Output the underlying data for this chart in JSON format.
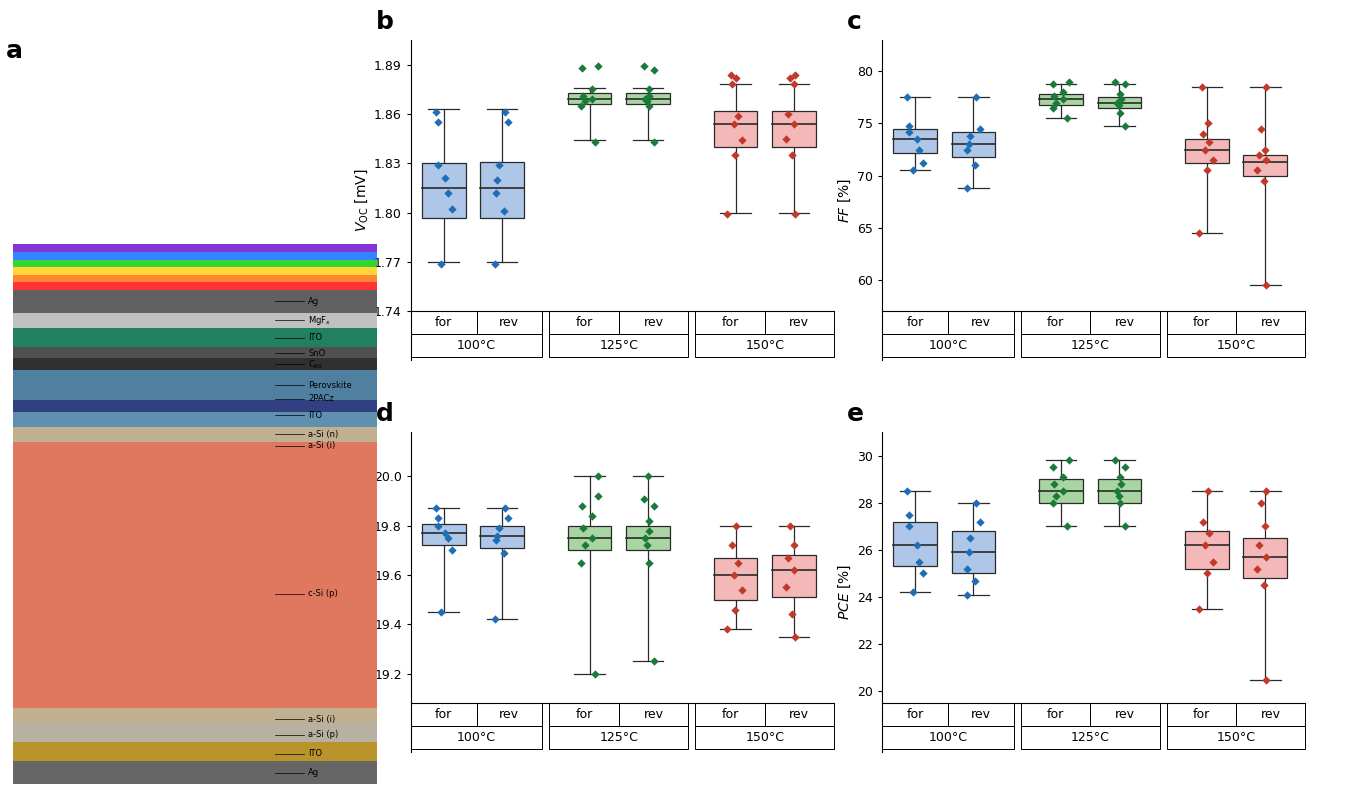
{
  "colors": {
    "100": {
      "face": "#aec6e8",
      "edge": "#2a2a2a",
      "scatter": "#1f6eb5"
    },
    "125": {
      "face": "#a8d5a2",
      "edge": "#2a2a2a",
      "scatter": "#1a7a3a"
    },
    "150": {
      "face": "#f4b8b8",
      "edge": "#2a2a2a",
      "scatter": "#c0392b"
    }
  },
  "panel_b": {
    "label": "b",
    "ylabel": "$V_{\\mathrm{OC}}$ [mV]",
    "ylim": [
      1.74,
      1.905
    ],
    "yticks": [
      1.74,
      1.77,
      1.8,
      1.83,
      1.86,
      1.89
    ],
    "boxes": {
      "100_for": {
        "q1": 1.797,
        "median": 1.815,
        "q3": 1.83,
        "whislo": 1.77,
        "whishi": 1.863,
        "points": [
          1.769,
          1.802,
          1.812,
          1.821,
          1.829,
          1.855,
          1.861
        ]
      },
      "100_rev": {
        "q1": 1.797,
        "median": 1.815,
        "q3": 1.831,
        "whislo": 1.77,
        "whishi": 1.863,
        "points": [
          1.769,
          1.801,
          1.812,
          1.82,
          1.829,
          1.855,
          1.861
        ]
      },
      "125_for": {
        "q1": 1.866,
        "median": 1.869,
        "q3": 1.873,
        "whislo": 1.844,
        "whishi": 1.876,
        "points": [
          1.843,
          1.865,
          1.868,
          1.869,
          1.871,
          1.875,
          1.888,
          1.889
        ]
      },
      "125_rev": {
        "q1": 1.866,
        "median": 1.869,
        "q3": 1.873,
        "whislo": 1.844,
        "whishi": 1.876,
        "points": [
          1.843,
          1.865,
          1.868,
          1.869,
          1.871,
          1.875,
          1.887,
          1.889
        ]
      },
      "150_for": {
        "q1": 1.84,
        "median": 1.854,
        "q3": 1.862,
        "whislo": 1.8,
        "whishi": 1.878,
        "points": [
          1.799,
          1.835,
          1.844,
          1.854,
          1.859,
          1.878,
          1.882,
          1.884
        ]
      },
      "150_rev": {
        "q1": 1.84,
        "median": 1.854,
        "q3": 1.862,
        "whislo": 1.8,
        "whishi": 1.878,
        "points": [
          1.799,
          1.835,
          1.845,
          1.854,
          1.86,
          1.878,
          1.882,
          1.884
        ]
      }
    }
  },
  "panel_c": {
    "label": "c",
    "ylabel": "$FF$ [%]",
    "ylim": [
      57,
      83
    ],
    "yticks": [
      60,
      65,
      70,
      75,
      80
    ],
    "boxes": {
      "100_for": {
        "q1": 72.2,
        "median": 73.5,
        "q3": 74.5,
        "whislo": 70.5,
        "whishi": 77.5,
        "points": [
          70.5,
          71.2,
          72.5,
          73.5,
          74.2,
          74.8,
          77.5
        ]
      },
      "100_rev": {
        "q1": 71.8,
        "median": 73.0,
        "q3": 74.2,
        "whislo": 68.8,
        "whishi": 77.5,
        "points": [
          68.8,
          71.0,
          72.5,
          73.0,
          73.8,
          74.5,
          77.5
        ]
      },
      "125_for": {
        "q1": 76.8,
        "median": 77.3,
        "q3": 77.8,
        "whislo": 75.5,
        "whishi": 78.8,
        "points": [
          75.5,
          76.5,
          77.0,
          77.3,
          77.6,
          78.0,
          78.8,
          79.0
        ]
      },
      "125_rev": {
        "q1": 76.5,
        "median": 77.0,
        "q3": 77.5,
        "whislo": 74.8,
        "whishi": 78.8,
        "points": [
          74.8,
          76.0,
          76.8,
          77.0,
          77.3,
          77.8,
          78.8,
          79.0
        ]
      },
      "150_for": {
        "q1": 71.2,
        "median": 72.5,
        "q3": 73.5,
        "whislo": 64.5,
        "whishi": 78.5,
        "points": [
          64.5,
          70.5,
          71.5,
          72.5,
          73.2,
          74.0,
          75.0,
          78.5
        ]
      },
      "150_rev": {
        "q1": 70.0,
        "median": 71.3,
        "q3": 72.0,
        "whislo": 59.5,
        "whishi": 78.5,
        "points": [
          59.5,
          69.5,
          70.5,
          71.5,
          72.0,
          72.5,
          74.5,
          78.5
        ]
      }
    }
  },
  "panel_d": {
    "label": "d",
    "ylabel": "$j_{\\mathrm{SC}}$ [mA/cm$^2$]",
    "ylim": [
      19.08,
      20.18
    ],
    "yticks": [
      19.2,
      19.4,
      19.6,
      19.8,
      20.0
    ],
    "boxes": {
      "100_for": {
        "q1": 19.72,
        "median": 19.77,
        "q3": 19.805,
        "whislo": 19.45,
        "whishi": 19.87,
        "points": [
          19.45,
          19.7,
          19.75,
          19.77,
          19.8,
          19.83,
          19.87
        ]
      },
      "100_rev": {
        "q1": 19.71,
        "median": 19.76,
        "q3": 19.8,
        "whislo": 19.42,
        "whishi": 19.87,
        "points": [
          19.42,
          19.69,
          19.74,
          19.76,
          19.79,
          19.83,
          19.87
        ]
      },
      "125_for": {
        "q1": 19.7,
        "median": 19.75,
        "q3": 19.8,
        "whislo": 19.2,
        "whishi": 20.0,
        "points": [
          19.2,
          19.65,
          19.72,
          19.75,
          19.79,
          19.84,
          19.88,
          19.92,
          20.0
        ]
      },
      "125_rev": {
        "q1": 19.7,
        "median": 19.75,
        "q3": 19.8,
        "whislo": 19.25,
        "whishi": 20.0,
        "points": [
          19.25,
          19.65,
          19.72,
          19.75,
          19.78,
          19.82,
          19.88,
          19.91,
          20.0
        ]
      },
      "150_for": {
        "q1": 19.5,
        "median": 19.6,
        "q3": 19.67,
        "whislo": 19.38,
        "whishi": 19.8,
        "points": [
          19.38,
          19.46,
          19.54,
          19.6,
          19.65,
          19.72,
          19.8
        ]
      },
      "150_rev": {
        "q1": 19.51,
        "median": 19.62,
        "q3": 19.68,
        "whislo": 19.35,
        "whishi": 19.8,
        "points": [
          19.35,
          19.44,
          19.55,
          19.62,
          19.67,
          19.72,
          19.8
        ]
      }
    }
  },
  "panel_e": {
    "label": "e",
    "ylabel": "$PCE$ [%]",
    "ylim": [
      19.5,
      31.0
    ],
    "yticks": [
      20,
      22,
      24,
      26,
      28,
      30
    ],
    "boxes": {
      "100_for": {
        "q1": 25.3,
        "median": 26.2,
        "q3": 27.2,
        "whislo": 24.2,
        "whishi": 28.5,
        "points": [
          24.2,
          25.0,
          25.5,
          26.2,
          27.0,
          27.5,
          28.5
        ]
      },
      "100_rev": {
        "q1": 25.0,
        "median": 25.9,
        "q3": 26.8,
        "whislo": 24.1,
        "whishi": 28.0,
        "points": [
          24.1,
          24.7,
          25.2,
          25.9,
          26.5,
          27.2,
          28.0
        ]
      },
      "125_for": {
        "q1": 28.0,
        "median": 28.5,
        "q3": 29.0,
        "whislo": 27.0,
        "whishi": 29.8,
        "points": [
          27.0,
          28.0,
          28.3,
          28.5,
          28.8,
          29.1,
          29.5,
          29.8
        ]
      },
      "125_rev": {
        "q1": 28.0,
        "median": 28.5,
        "q3": 29.0,
        "whislo": 27.0,
        "whishi": 29.8,
        "points": [
          27.0,
          28.0,
          28.3,
          28.5,
          28.8,
          29.1,
          29.5,
          29.8
        ]
      },
      "150_for": {
        "q1": 25.2,
        "median": 26.2,
        "q3": 26.8,
        "whislo": 23.5,
        "whishi": 28.5,
        "points": [
          23.5,
          25.0,
          25.5,
          26.2,
          26.7,
          27.2,
          28.5
        ]
      },
      "150_rev": {
        "q1": 24.8,
        "median": 25.7,
        "q3": 26.5,
        "whislo": 20.5,
        "whishi": 28.5,
        "points": [
          20.5,
          24.5,
          25.2,
          25.7,
          26.2,
          27.0,
          28.0,
          28.5
        ]
      }
    }
  }
}
